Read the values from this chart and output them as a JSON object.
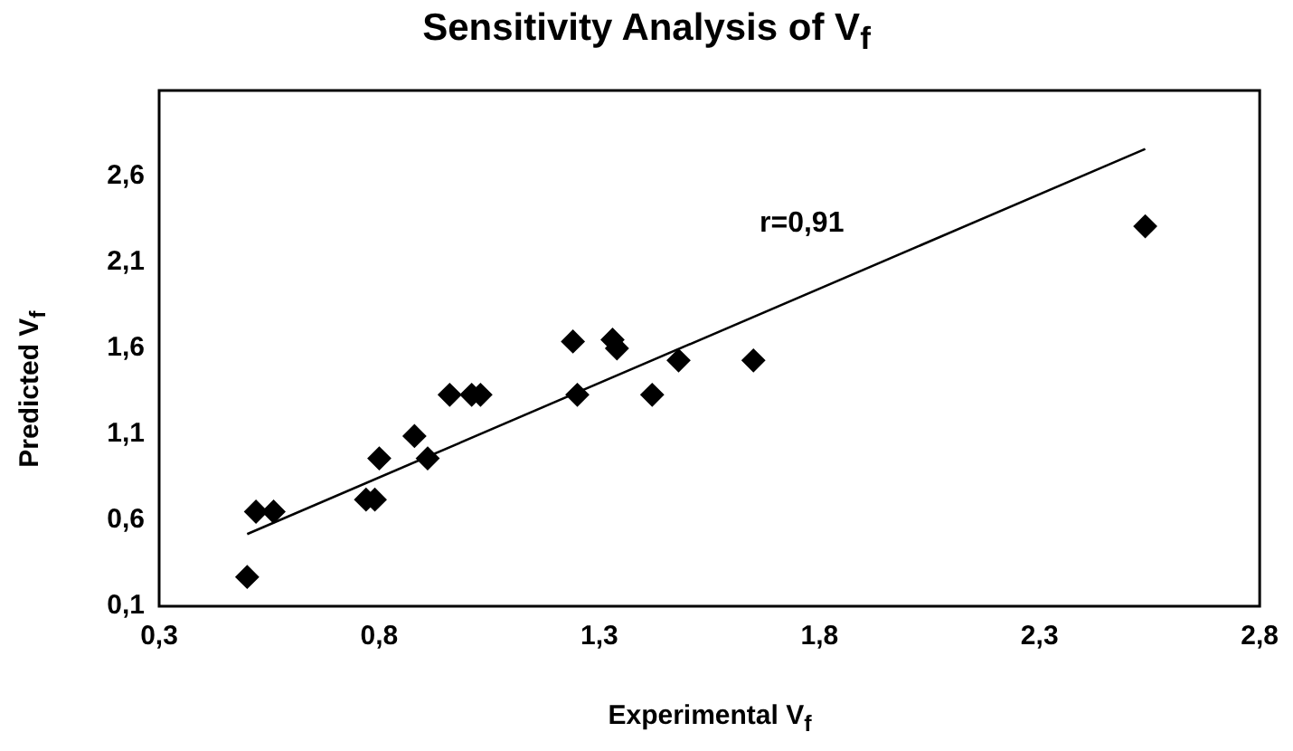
{
  "chart_data": {
    "type": "scatter",
    "title": "Sensitivity Analysis of V$_{f}$",
    "xlabel": "Experimental V$_{f}$",
    "ylabel": "Predicted V$_{f}$",
    "series": [
      {
        "marker": "diamond",
        "color": "#000000",
        "x": [
          0.5,
          0.52,
          0.56,
          0.77,
          0.79,
          0.8,
          0.88,
          0.91,
          0.96,
          1.01,
          1.03,
          1.24,
          1.25,
          1.33,
          1.34,
          1.42,
          1.48,
          1.65,
          2.54
        ],
        "values": [
          0.27,
          0.65,
          0.65,
          0.72,
          0.72,
          0.96,
          1.09,
          0.96,
          1.33,
          1.33,
          1.33,
          1.64,
          1.33,
          1.65,
          1.6,
          1.33,
          1.53,
          1.53,
          2.31
        ]
      },
      {
        "type": "line",
        "marker": "none",
        "color": "#000000",
        "x": [
          0.5,
          2.54
        ],
        "values": [
          0.52,
          2.76
        ]
      }
    ],
    "xlim": [
      0.3,
      2.8
    ],
    "xticks": [
      {
        "value": 0.3,
        "label": "0,3"
      },
      {
        "value": 0.8,
        "label": "0,8"
      },
      {
        "value": 1.3,
        "label": "1,3"
      },
      {
        "value": 1.8,
        "label": "1,8"
      },
      {
        "value": 2.3,
        "label": "2,3"
      },
      {
        "value": 2.8,
        "label": "2,8"
      }
    ],
    "ylim": [
      0.1,
      3.1
    ],
    "yticks": [
      {
        "value": 0.1,
        "label": "0,1"
      },
      {
        "value": 0.6,
        "label": "0,6"
      },
      {
        "value": 1.1,
        "label": "1,1"
      },
      {
        "value": 1.6,
        "label": "1,6"
      },
      {
        "value": 2.1,
        "label": "2,1"
      },
      {
        "value": 2.6,
        "label": "2,6"
      }
    ],
    "annotations": [
      "r=0,91"
    ],
    "grid": false,
    "legend": false
  }
}
